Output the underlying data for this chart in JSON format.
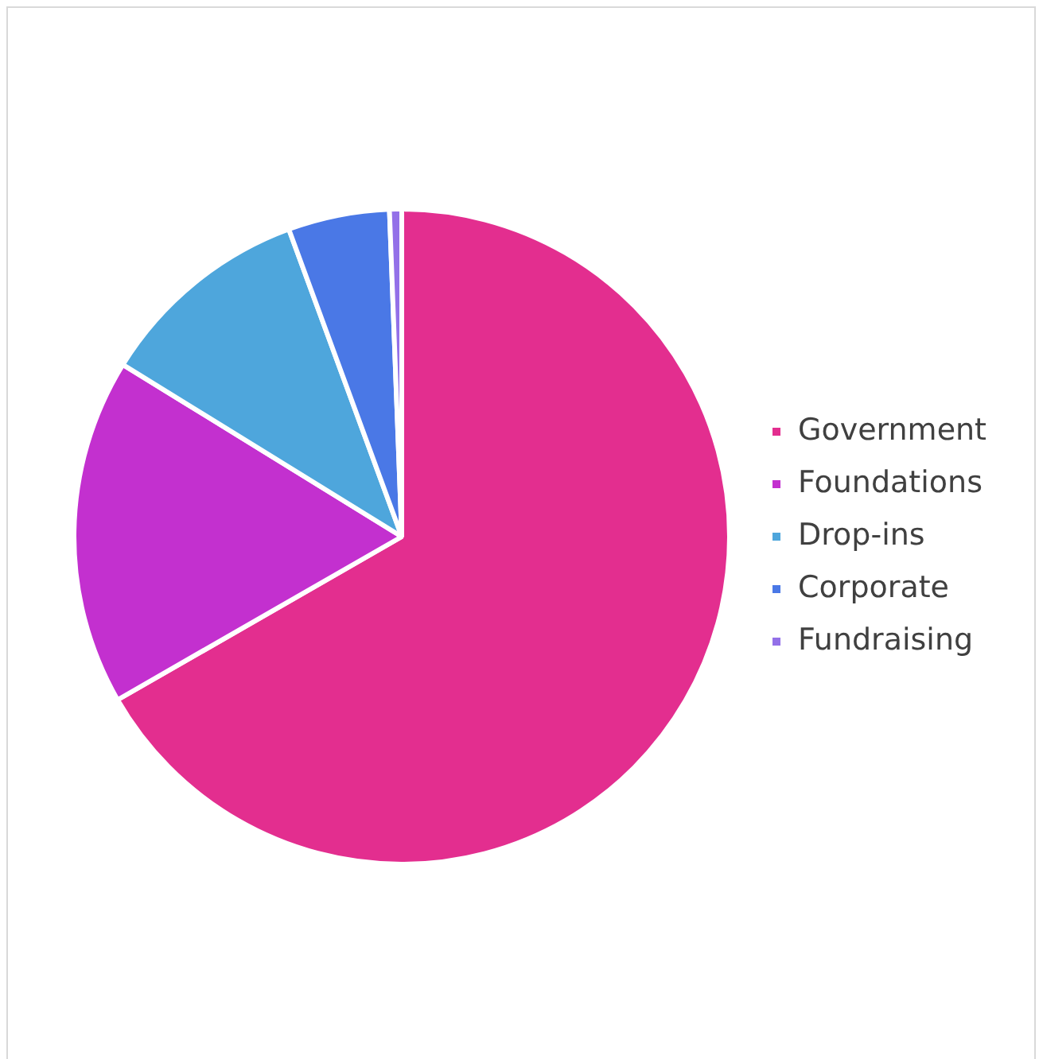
{
  "chart_data": {
    "type": "pie",
    "categories": [
      "Government",
      "Foundations",
      "Drop-ins",
      "Corporate",
      "Fundraising"
    ],
    "values": [
      66.7,
      17.1,
      10.6,
      5.0,
      0.6
    ],
    "colors": [
      "#e32e8f",
      "#c330cf",
      "#4ea6dc",
      "#4a78e6",
      "#9370e8"
    ],
    "legend": "right"
  }
}
